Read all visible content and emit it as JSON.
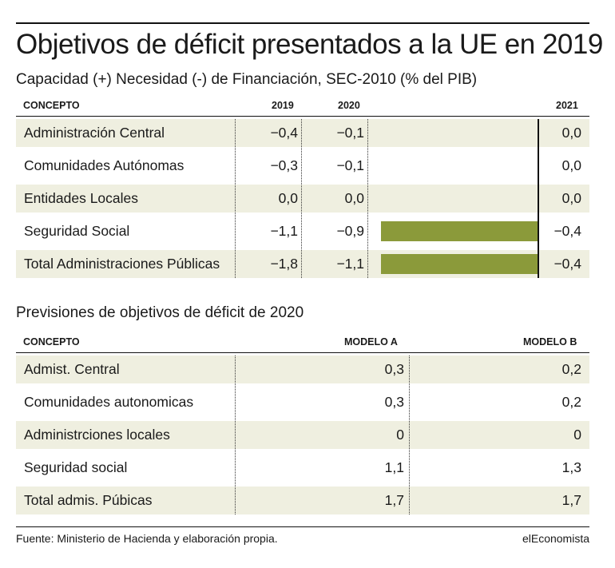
{
  "title": "Objetivos de déficit presentados a la UE en 2019",
  "subtitle": "Capacidad (+) Necesidad (-) de Financiación, SEC-2010 (% del PIB)",
  "table1": {
    "headers": {
      "concepto": "CONCEPTO",
      "y2019": "2019",
      "y2020": "2020",
      "y2021": "2021"
    },
    "rows": [
      {
        "label": "Administración Central",
        "v2019": "−0,4",
        "v2020": "−0,1",
        "v2021": "0,0"
      },
      {
        "label": "Comunidades Autónomas",
        "v2019": "−0,3",
        "v2020": "−0,1",
        "v2021": "0,0"
      },
      {
        "label": "Entidades Locales",
        "v2019": "0,0",
        "v2020": "0,0",
        "v2021": "0,0"
      },
      {
        "label": "Seguridad Social",
        "v2019": "−1,1",
        "v2020": "−0,9",
        "v2021": "−0,4"
      },
      {
        "label": "Total Administraciones Públicas",
        "v2019": "−1,8",
        "v2020": "−1,1",
        "v2021": "−0,4"
      }
    ]
  },
  "chart_data": {
    "type": "bar",
    "categories": [
      "Administración Central",
      "Comunidades Autónomas",
      "Entidades Locales",
      "Seguridad Social",
      "Total Administraciones Públicas"
    ],
    "values": [
      0.0,
      0.0,
      0.0,
      -0.4,
      -0.4
    ],
    "bar_color": "#8b9a3a"
  },
  "section2_title": "Previsiones de objetivos de déficit de 2020",
  "table2": {
    "headers": {
      "concepto": "CONCEPTO",
      "modelo_a": "MODELO A",
      "modelo_b": "MODELO B"
    },
    "rows": [
      {
        "label": "Admist. Central",
        "a": "0,3",
        "b": "0,2"
      },
      {
        "label": "Comunidades autonomicas",
        "a": "0,3",
        "b": "0,2"
      },
      {
        "label": "Administrciones locales",
        "a": "0",
        "b": "0"
      },
      {
        "label": "Seguridad social",
        "a": "1,1",
        "b": "1,3"
      },
      {
        "label": "Total admis. Púbicas",
        "a": "1,7",
        "b": "1,7"
      }
    ]
  },
  "footer": {
    "source": "Fuente: Ministerio de Hacienda y elaboración propia.",
    "brand": "elEconomista"
  },
  "colors": {
    "row_shade": "#efefe0",
    "bar": "#8b9a3a"
  }
}
